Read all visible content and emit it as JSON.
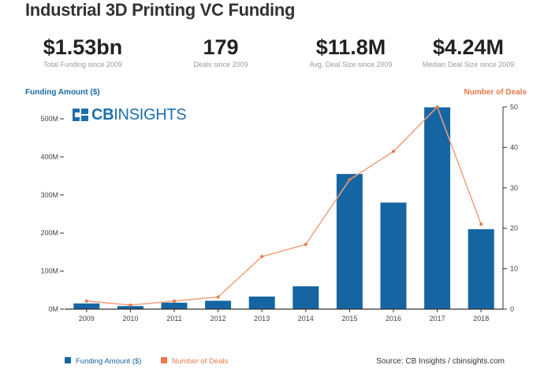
{
  "title": "Industrial 3D Printing VC Funding",
  "stats": [
    {
      "value": "$1.53bn",
      "label": "Total Funding since 2009"
    },
    {
      "value": "179",
      "label": "Deals since 2009"
    },
    {
      "value": "$11.8M",
      "label": "Avg. Deal Size since 2009"
    },
    {
      "value": "$4.24M",
      "label": "Median Deal Size since 2009"
    }
  ],
  "logo": {
    "text_bold": "CB",
    "text_regular": "INSIGHTS"
  },
  "source": "Source: CB Insights / cbinsights.com",
  "colors": {
    "bar": "#1565a3",
    "line": "#f0a07c",
    "line_marker": "#e8794a",
    "axis": "#333333"
  },
  "chart_data": {
    "type": "bar",
    "categories": [
      "2009",
      "2010",
      "2011",
      "2012",
      "2013",
      "2014",
      "2015",
      "2016",
      "2017",
      "2018"
    ],
    "series": [
      {
        "name": "Funding Amount ($)",
        "type": "bar",
        "axis": "left",
        "values": [
          15,
          8,
          17,
          22,
          33,
          60,
          355,
          280,
          530,
          210
        ]
      },
      {
        "name": "Number of Deals",
        "type": "line",
        "axis": "right",
        "values": [
          2,
          1,
          2,
          3,
          13,
          16,
          32,
          39,
          50,
          21
        ]
      }
    ],
    "y_left": {
      "label": "Funding Amount ($)",
      "min": 0,
      "max": 500,
      "ticks": [
        0,
        100,
        200,
        300,
        400,
        500
      ],
      "tick_labels": [
        "0M",
        "100M",
        "200M",
        "300M",
        "400M",
        "500M"
      ]
    },
    "y_right": {
      "label": "Number of Deals",
      "min": 0,
      "max": 50,
      "ticks": [
        0,
        10,
        20,
        30,
        40,
        50
      ],
      "tick_labels": [
        "0",
        "10",
        "20",
        "30",
        "40",
        "50"
      ]
    },
    "grid": false,
    "legend_position": "bottom-left"
  }
}
